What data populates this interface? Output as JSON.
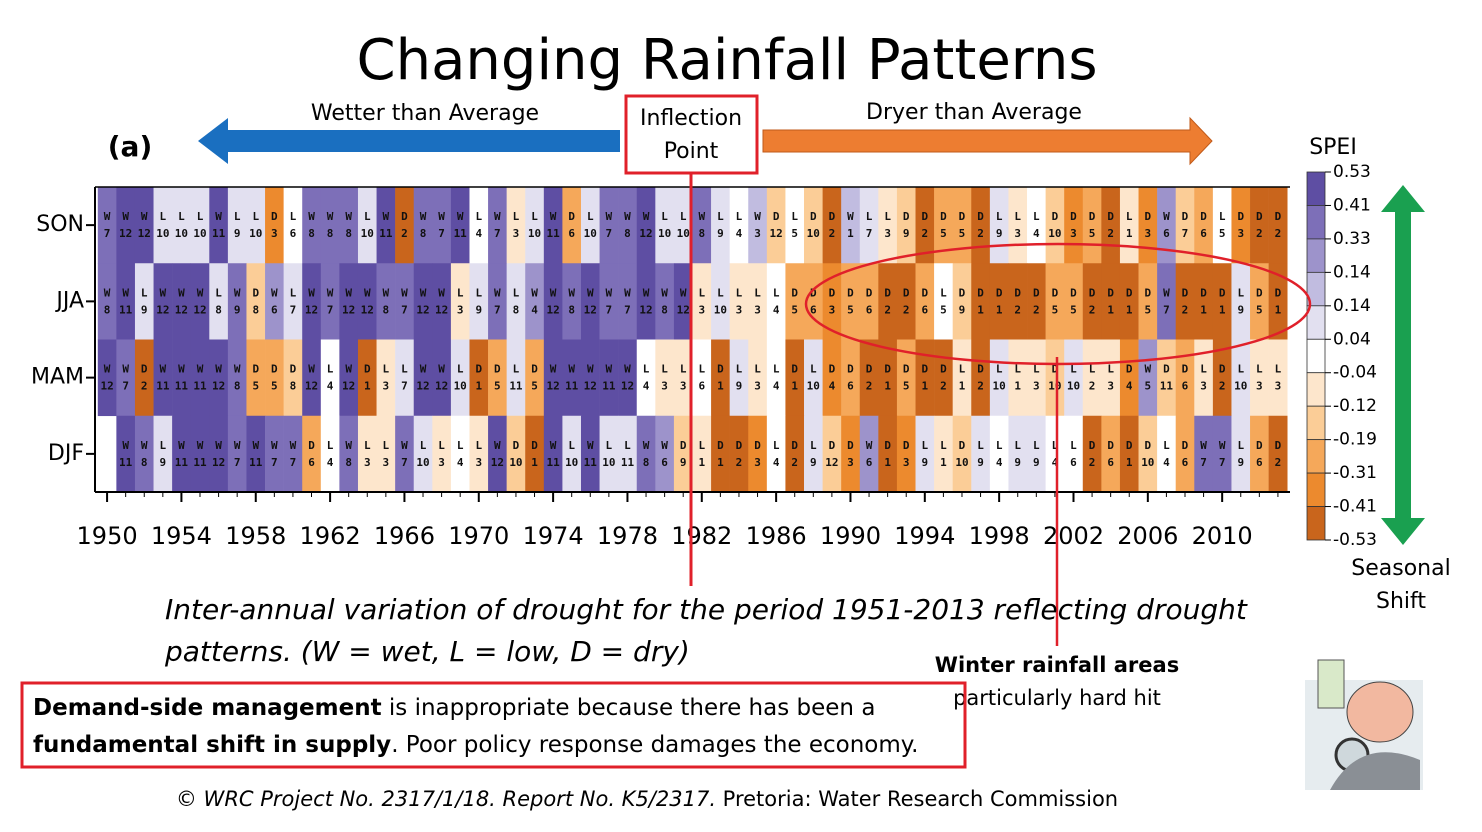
{
  "chart_data": {
    "type": "heatmap",
    "title": "Changing Rainfall Patterns",
    "panel_label": "(a)",
    "left_arrow_label": "Wetter than Average",
    "right_arrow_label": "Dryer than Average",
    "inflection_label": [
      "Inflection",
      "Point"
    ],
    "rows": [
      "SON",
      "JJA",
      "MAM",
      "DJF"
    ],
    "x": [
      1950,
      1951,
      1952,
      1953,
      1954,
      1955,
      1956,
      1957,
      1958,
      1959,
      1960,
      1961,
      1962,
      1963,
      1964,
      1965,
      1966,
      1967,
      1968,
      1969,
      1970,
      1971,
      1972,
      1973,
      1974,
      1975,
      1976,
      1977,
      1978,
      1979,
      1980,
      1981,
      1982,
      1983,
      1984,
      1985,
      1986,
      1987,
      1988,
      1989,
      1990,
      1991,
      1992,
      1993,
      1994,
      1995,
      1996,
      1997,
      1998,
      1999,
      2000,
      2001,
      2002,
      2003,
      2004,
      2005,
      2006,
      2007,
      2008,
      2009,
      2010,
      2011,
      2012,
      2013
    ],
    "xlim": [
      1949.35,
      2013.65
    ],
    "xticks": [
      1950,
      1954,
      1958,
      1962,
      1966,
      1970,
      1974,
      1978,
      1982,
      1986,
      1990,
      1994,
      1998,
      2002,
      2006,
      2010
    ],
    "series": [
      {
        "name": "SON",
        "letters": [
          "W",
          "W",
          "W",
          "L",
          "L",
          "L",
          "W",
          "L",
          "L",
          "D",
          "L",
          "W",
          "W",
          "W",
          "L",
          "W",
          "D",
          "W",
          "W",
          "W",
          "L",
          "W",
          "L",
          "L",
          "W",
          "D",
          "L",
          "W",
          "W",
          "W",
          "L",
          "L",
          "W",
          "L",
          "L",
          "W",
          "D",
          "L",
          "D",
          "D",
          "W",
          "L",
          "L",
          "D",
          "D",
          "D",
          "D",
          "D",
          "L",
          "L",
          "L",
          "D",
          "D",
          "D",
          "D",
          "L",
          "D",
          "W",
          "D",
          "D",
          "L",
          "D",
          "D",
          "D"
        ],
        "values": [
          7,
          12,
          12,
          10,
          10,
          10,
          11,
          9,
          10,
          3,
          6,
          8,
          8,
          8,
          10,
          11,
          2,
          8,
          7,
          11,
          4,
          7,
          3,
          10,
          11,
          6,
          10,
          7,
          8,
          12,
          10,
          10,
          8,
          9,
          4,
          3,
          12,
          5,
          10,
          2,
          1,
          7,
          3,
          9,
          2,
          5,
          5,
          2,
          9,
          3,
          4,
          10,
          3,
          5,
          2,
          1,
          3,
          6,
          7,
          6,
          5,
          3,
          2,
          2
        ]
      },
      {
        "name": "JJA",
        "letters": [
          "W",
          "W",
          "L",
          "W",
          "W",
          "W",
          "L",
          "W",
          "D",
          "W",
          "L",
          "W",
          "W",
          "W",
          "W",
          "W",
          "W",
          "W",
          "W",
          "L",
          "L",
          "W",
          "L",
          "W",
          "W",
          "W",
          "W",
          "W",
          "W",
          "W",
          "W",
          "W",
          "L",
          "L",
          "L",
          "L",
          "L",
          "D",
          "D",
          "D",
          "D",
          "D",
          "D",
          "D",
          "D",
          "L",
          "D",
          "D",
          "D",
          "D",
          "D",
          "D",
          "D",
          "D",
          "D",
          "D",
          "D",
          "W",
          "D",
          "D",
          "D",
          "L",
          "D",
          "D"
        ],
        "values": [
          8,
          11,
          9,
          12,
          12,
          12,
          8,
          9,
          8,
          6,
          7,
          12,
          7,
          12,
          12,
          8,
          7,
          12,
          12,
          3,
          9,
          7,
          8,
          4,
          12,
          8,
          12,
          7,
          7,
          12,
          8,
          12,
          3,
          10,
          3,
          3,
          4,
          5,
          6,
          3,
          5,
          6,
          2,
          2,
          6,
          5,
          9,
          1,
          1,
          2,
          2,
          5,
          5,
          2,
          1,
          1,
          5,
          7,
          2,
          1,
          1,
          9,
          5,
          1
        ]
      },
      {
        "name": "MAM",
        "letters": [
          "W",
          "W",
          "D",
          "W",
          "W",
          "W",
          "W",
          "W",
          "D",
          "D",
          "D",
          "W",
          "L",
          "W",
          "D",
          "L",
          "L",
          "W",
          "W",
          "L",
          "D",
          "D",
          "L",
          "D",
          "W",
          "W",
          "W",
          "W",
          "W",
          "L",
          "L",
          "L",
          "L",
          "D",
          "L",
          "L",
          "L",
          "D",
          "L",
          "D",
          "D",
          "D",
          "D",
          "D",
          "D",
          "D",
          "L",
          "D",
          "L",
          "L",
          "L",
          "D",
          "L",
          "L",
          "L",
          "D",
          "W",
          "D",
          "D",
          "L",
          "D",
          "L",
          "L",
          "L"
        ],
        "values": [
          12,
          7,
          2,
          11,
          11,
          11,
          12,
          8,
          5,
          5,
          8,
          12,
          4,
          12,
          1,
          3,
          7,
          12,
          12,
          10,
          1,
          5,
          11,
          5,
          12,
          11,
          12,
          11,
          12,
          4,
          3,
          3,
          6,
          1,
          9,
          3,
          4,
          1,
          10,
          4,
          6,
          2,
          1,
          5,
          1,
          2,
          1,
          2,
          10,
          1,
          3,
          10,
          10,
          2,
          3,
          4,
          5,
          11,
          6,
          3,
          2,
          10,
          3,
          3
        ]
      },
      {
        "name": "DJF",
        "letters": [
          null,
          "W",
          "W",
          "L",
          "W",
          "W",
          "W",
          "W",
          "W",
          "W",
          "W",
          "D",
          "L",
          "W",
          "L",
          "L",
          "W",
          "L",
          "L",
          "L",
          "L",
          "W",
          "D",
          "D",
          "W",
          "L",
          "W",
          "L",
          "L",
          "W",
          "W",
          "D",
          "L",
          "D",
          "D",
          "D",
          "L",
          "D",
          "L",
          "D",
          "D",
          "W",
          "D",
          "D",
          "L",
          "L",
          "D",
          "L",
          "L",
          "L",
          "L",
          "L",
          "L",
          "D",
          "D",
          "D",
          "D",
          "L",
          "D",
          "W",
          "W",
          "L",
          "D",
          "D"
        ],
        "values": [
          null,
          11,
          8,
          9,
          11,
          11,
          12,
          7,
          11,
          7,
          7,
          6,
          4,
          8,
          3,
          3,
          7,
          10,
          3,
          4,
          3,
          12,
          10,
          1,
          11,
          10,
          11,
          10,
          11,
          8,
          6,
          9,
          1,
          1,
          2,
          3,
          4,
          2,
          9,
          12,
          3,
          6,
          1,
          3,
          9,
          1,
          10,
          9,
          4,
          9,
          9,
          4,
          6,
          2,
          6,
          1,
          10,
          4,
          6,
          7,
          7,
          9,
          6,
          2
        ]
      }
    ],
    "legend_title": "SPEI",
    "legend_ticks": [
      0.53,
      0.41,
      0.33,
      0.14,
      0.14,
      0.04,
      -0.04,
      -0.12,
      -0.19,
      -0.31,
      -0.41,
      -0.53
    ],
    "legend_colors": [
      "#5e4ea3",
      "#7d6fb8",
      "#9d93cb",
      "#c1bce0",
      "#e2e0f0",
      "#ffffff",
      "#fde6cc",
      "#fbcd97",
      "#f5a85a",
      "#ec8a2e",
      "#c9651c"
    ],
    "seasonal_shift": [
      "Seasonal",
      "Shift"
    ],
    "caption": [
      "Inter-annual variation of drought for the period 1951-2013 reflecting drought",
      "patterns. (W = wet, L = low, D = dry)"
    ],
    "annotation_bold": "Winter rainfall areas",
    "annotation": "particularly hard hit",
    "box": {
      "line1_bold": "Demand-side management",
      "line1_rest": " is inappropriate because there has been a",
      "line2_bold": "fundamental shift in supply",
      "line2_rest": ". Poor policy response damages the economy."
    },
    "footer": {
      "italic": "© WRC Project No. 2317/1/18.  Report No. K5/2317.",
      "plain": " Pretoria: Water Research Commission"
    }
  }
}
